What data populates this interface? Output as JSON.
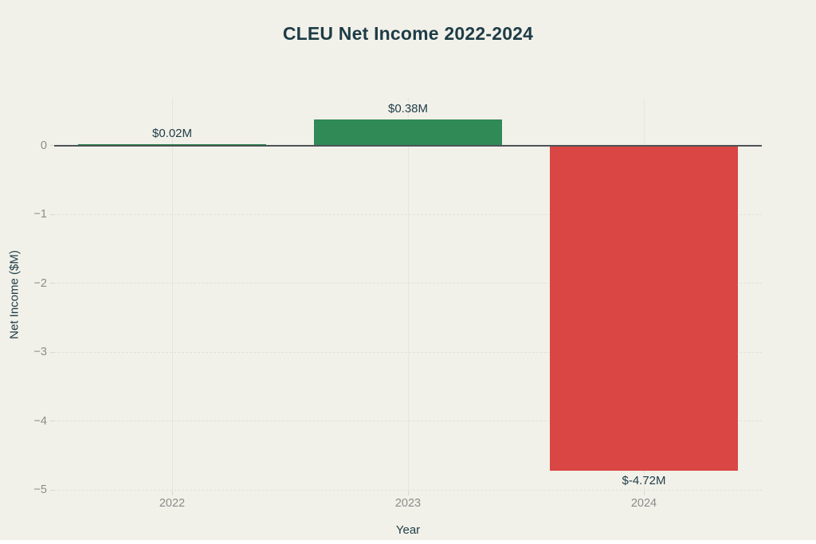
{
  "page": {
    "background_color": "#f2f1e9",
    "bottom_strip_color": "#ffffff"
  },
  "chart_data": {
    "type": "bar",
    "title": "CLEU Net Income 2022-2024",
    "xlabel": "Year",
    "ylabel": "Net Income ($M)",
    "categories": [
      "2022",
      "2023",
      "2024"
    ],
    "values": [
      0.02,
      0.38,
      -4.72
    ],
    "bar_labels": [
      "$0.02M",
      "$0.38M",
      "$-4.72M"
    ],
    "yticks": [
      0,
      -1,
      -2,
      -3,
      -4,
      -5
    ],
    "ytick_labels": [
      "0",
      "−1",
      "−2",
      "−3",
      "−4",
      "−5"
    ],
    "ylim": [
      -5.02,
      0.69
    ],
    "bar_width_fraction": 0.8,
    "grid": true,
    "legend_position": "none",
    "colors": {
      "positive_bar": "#2f8a55",
      "negative_bar": "#d94643",
      "title_text": "#1e3c47",
      "tick_text": "#8b8b8b",
      "gridline": "#e3e2d9",
      "zero_line": "#4b5357"
    }
  }
}
